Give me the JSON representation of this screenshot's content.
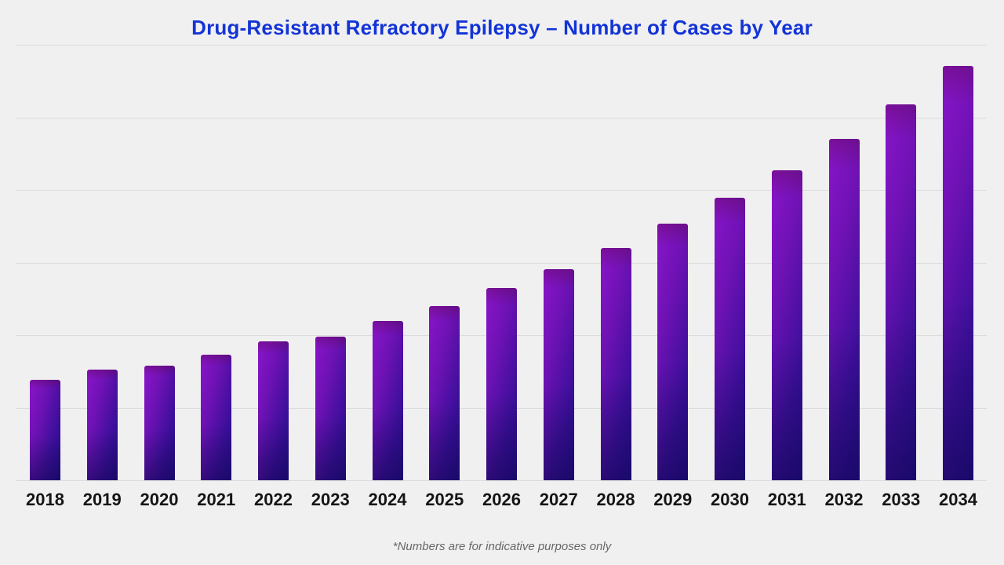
{
  "title": {
    "text": "Drug-Resistant Refractory Epilepsy – Number of Cases by Year",
    "color": "#1334d6"
  },
  "footnote": {
    "text": "*Numbers are for indicative purposes only"
  },
  "chart_data": {
    "type": "bar",
    "title": "Drug-Resistant Refractory Epilepsy – Number of Cases by Year",
    "categories": [
      "2018",
      "2019",
      "2020",
      "2021",
      "2022",
      "2023",
      "2024",
      "2025",
      "2026",
      "2027",
      "2028",
      "2029",
      "2030",
      "2031",
      "2032",
      "2033",
      "2034"
    ],
    "values": [
      1.38,
      1.52,
      1.58,
      1.73,
      1.91,
      1.98,
      2.19,
      2.4,
      2.65,
      2.91,
      3.2,
      3.54,
      3.89,
      4.27,
      4.7,
      5.18,
      5.71
    ],
    "value_note": "y-axis has no labels; values estimated in gridline units (1 unit = one gridline interval)",
    "xlabel": "",
    "ylabel": "",
    "ylim": [
      0,
      6
    ],
    "gridline_intervals": 6,
    "grid_visible": true,
    "legend": "none",
    "bar_gradient": [
      "#8a15cb",
      "#6f12b5",
      "#3a0f99",
      "#250d8a"
    ],
    "background_color": "#f0f0f1",
    "gridline_color": "#dcdcdc",
    "tick_label_color": "#151515"
  }
}
